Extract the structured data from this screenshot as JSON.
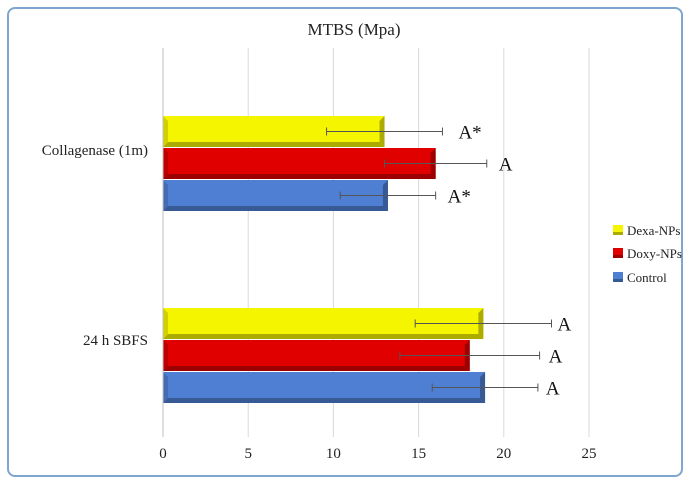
{
  "chart_data": {
    "type": "bar",
    "orientation": "horizontal",
    "title": "MTBS (Mpa)",
    "xlabel": "",
    "ylabel": "",
    "xlim": [
      0,
      25
    ],
    "x_ticks": [
      "0",
      "5",
      "10",
      "15",
      "20",
      "25"
    ],
    "grid": "vertical",
    "legend_position": "right",
    "categories": [
      "Collagenase  (1m)",
      "24 h SBFS"
    ],
    "series": [
      {
        "name": "Dexa-NPs",
        "color": "#f5f500",
        "values": [
          13.0,
          18.8
        ],
        "errors": [
          3.4,
          4.0
        ],
        "labels": [
          "A*",
          "A"
        ]
      },
      {
        "name": "Doxy-NPs",
        "color": "#e00000",
        "values": [
          16.0,
          18.0
        ],
        "errors": [
          3.0,
          4.1
        ],
        "labels": [
          "A",
          "A"
        ]
      },
      {
        "name": "Control",
        "color": "#4f7fd3",
        "values": [
          13.2,
          18.9
        ],
        "errors": [
          2.8,
          3.1
        ],
        "labels": [
          "A*",
          "A"
        ]
      }
    ]
  }
}
